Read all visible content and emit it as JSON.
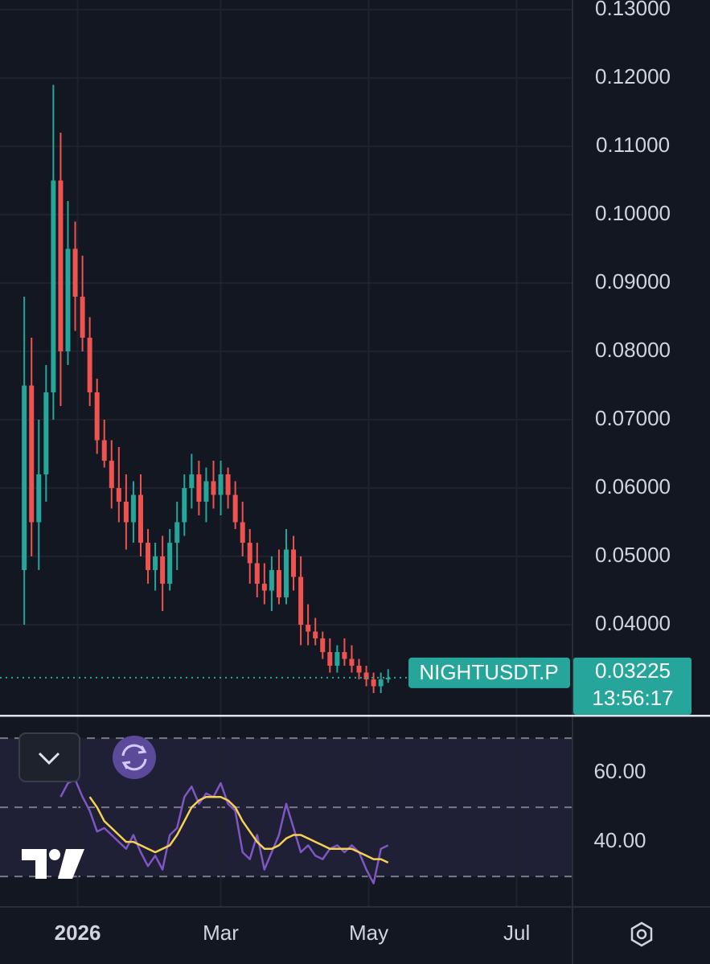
{
  "chart_data": [
    {
      "type": "candlestick",
      "x": [
        10,
        13,
        16,
        19,
        22,
        25,
        28,
        31,
        34,
        37,
        40,
        43,
        46,
        49,
        52,
        55,
        58,
        61,
        64,
        67,
        70,
        73,
        76,
        79,
        82,
        85,
        88,
        91,
        94,
        97,
        100,
        103,
        106,
        109,
        112,
        115,
        118,
        121,
        124,
        127,
        130,
        133,
        136,
        139,
        142,
        145,
        148,
        151,
        154,
        157,
        160
      ],
      "open": [
        0.048,
        0.075,
        0.055,
        0.062,
        0.074,
        0.105,
        0.08,
        0.095,
        0.088,
        0.082,
        0.074,
        0.067,
        0.064,
        0.06,
        0.058,
        0.055,
        0.059,
        0.052,
        0.048,
        0.05,
        0.046,
        0.052,
        0.055,
        0.06,
        0.062,
        0.058,
        0.061,
        0.059,
        0.062,
        0.059,
        0.055,
        0.052,
        0.049,
        0.046,
        0.045,
        0.048,
        0.044,
        0.051,
        0.047,
        0.04,
        0.039,
        0.038,
        0.036,
        0.034,
        0.036,
        0.035,
        0.034,
        0.033,
        0.032,
        0.031,
        0.032
      ],
      "high": [
        0.088,
        0.082,
        0.07,
        0.078,
        0.119,
        0.112,
        0.102,
        0.099,
        0.094,
        0.085,
        0.076,
        0.07,
        0.067,
        0.066,
        0.062,
        0.061,
        0.062,
        0.054,
        0.052,
        0.053,
        0.054,
        0.058,
        0.062,
        0.065,
        0.064,
        0.063,
        0.064,
        0.064,
        0.063,
        0.061,
        0.058,
        0.054,
        0.052,
        0.049,
        0.05,
        0.051,
        0.054,
        0.053,
        0.05,
        0.043,
        0.041,
        0.039,
        0.038,
        0.037,
        0.038,
        0.037,
        0.035,
        0.034,
        0.033,
        0.033,
        0.0335
      ],
      "low": [
        0.04,
        0.05,
        0.048,
        0.058,
        0.07,
        0.072,
        0.078,
        0.083,
        0.08,
        0.072,
        0.065,
        0.063,
        0.057,
        0.055,
        0.051,
        0.052,
        0.05,
        0.046,
        0.045,
        0.042,
        0.045,
        0.048,
        0.053,
        0.057,
        0.056,
        0.055,
        0.057,
        0.056,
        0.057,
        0.054,
        0.05,
        0.046,
        0.044,
        0.043,
        0.042,
        0.043,
        0.043,
        0.045,
        0.037,
        0.037,
        0.037,
        0.035,
        0.033,
        0.033,
        0.034,
        0.033,
        0.032,
        0.031,
        0.03,
        0.03,
        0.0315
      ],
      "close": [
        0.075,
        0.055,
        0.062,
        0.074,
        0.105,
        0.08,
        0.095,
        0.088,
        0.082,
        0.074,
        0.067,
        0.064,
        0.06,
        0.058,
        0.055,
        0.059,
        0.052,
        0.048,
        0.05,
        0.046,
        0.052,
        0.055,
        0.06,
        0.062,
        0.058,
        0.061,
        0.059,
        0.062,
        0.059,
        0.055,
        0.052,
        0.049,
        0.046,
        0.045,
        0.048,
        0.044,
        0.051,
        0.047,
        0.04,
        0.039,
        0.038,
        0.036,
        0.034,
        0.036,
        0.035,
        0.034,
        0.033,
        0.032,
        0.031,
        0.032,
        0.03225
      ],
      "up_color": "#26a69a",
      "down_color": "#ef5350",
      "xlim": [
        0,
        236
      ],
      "ylim": [
        0.02671,
        0.13141
      ],
      "yticks": [
        {
          "value": 0.04,
          "label": "0.04000"
        },
        {
          "value": 0.05,
          "label": "0.05000"
        },
        {
          "value": 0.06,
          "label": "0.06000"
        },
        {
          "value": 0.07,
          "label": "0.07000"
        },
        {
          "value": 0.08,
          "label": "0.08000"
        },
        {
          "value": 0.09,
          "label": "0.09000"
        },
        {
          "value": 0.1,
          "label": "0.10000"
        },
        {
          "value": 0.11,
          "label": "0.11000"
        },
        {
          "value": 0.12,
          "label": "0.12000"
        },
        {
          "value": 0.13,
          "label": "0.13000"
        }
      ],
      "grid": true,
      "symbol": "NIGHTUSDT.P",
      "last_price": {
        "value": 0.03225,
        "label": "0.03225"
      },
      "countdown": "13:56:17"
    },
    {
      "type": "line",
      "x": [
        10,
        13,
        16,
        19,
        22,
        25,
        28,
        31,
        34,
        37,
        40,
        43,
        46,
        49,
        52,
        55,
        58,
        61,
        64,
        67,
        70,
        73,
        76,
        79,
        82,
        85,
        88,
        91,
        94,
        97,
        100,
        103,
        106,
        109,
        112,
        115,
        118,
        121,
        124,
        127,
        130,
        133,
        136,
        139,
        142,
        145,
        148,
        151,
        154,
        157,
        160
      ],
      "series": [
        {
          "color": "#7e57c2",
          "values": [
            null,
            null,
            null,
            null,
            null,
            53,
            57,
            58,
            53,
            49,
            43,
            44,
            42,
            40,
            38,
            42,
            37,
            33,
            36,
            32,
            42,
            44,
            53,
            56,
            51,
            54,
            53,
            57,
            51,
            49,
            37,
            35,
            42,
            32,
            37,
            42,
            51,
            44,
            37,
            39,
            36,
            35,
            38,
            39,
            37,
            39,
            37,
            32,
            28,
            38,
            39
          ]
        },
        {
          "color": "#f7d154",
          "values": [
            null,
            null,
            null,
            null,
            null,
            null,
            null,
            null,
            null,
            53,
            50,
            46,
            44,
            42,
            40,
            40,
            39,
            38,
            37,
            38,
            39,
            42,
            46,
            50,
            52,
            53,
            53,
            53,
            52,
            50,
            46,
            43,
            40,
            38,
            38,
            39,
            41,
            42,
            42,
            41,
            40,
            39,
            38,
            38,
            38,
            38,
            37,
            36,
            35,
            35,
            34
          ]
        }
      ],
      "xlim": [
        0,
        236
      ],
      "ylim": [
        21.2,
        74.9
      ],
      "yticks": [
        {
          "value": 40,
          "label": "40.00"
        },
        {
          "value": 60,
          "label": "60.00"
        }
      ],
      "levels": [
        30,
        50,
        70
      ],
      "xticks": [
        {
          "value": 32,
          "label": "2026"
        },
        {
          "value": 91,
          "label": "Mar"
        },
        {
          "value": 152,
          "label": "May"
        },
        {
          "value": 213,
          "label": "Jul"
        }
      ],
      "grid": true
    }
  ]
}
